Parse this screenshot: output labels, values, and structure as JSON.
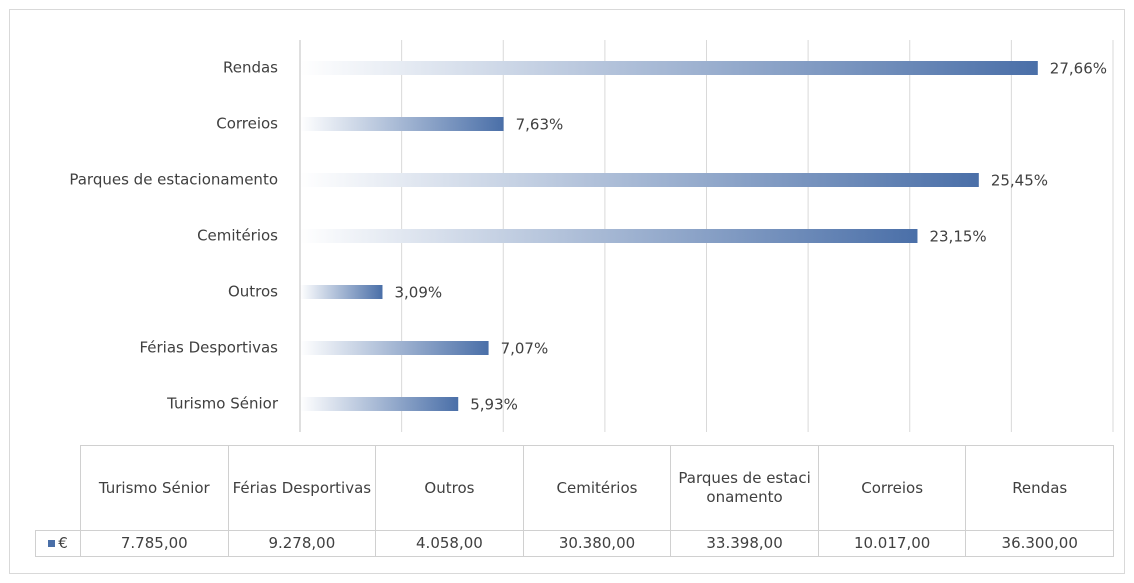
{
  "chart_data": {
    "type": "bar",
    "orientation": "horizontal",
    "categories": [
      "Turismo Sénior",
      "Férias Desportivas",
      "Outros",
      "Cemitérios",
      "Parques de estacionamento",
      "Correios",
      "Rendas"
    ],
    "series": [
      {
        "name": "€",
        "color": "#4a6fa8",
        "values": [
          7785,
          9278,
          4058,
          30380,
          33398,
          10017,
          36300
        ],
        "value_labels": [
          "7.785,00",
          "9.278,00",
          "4.058,00",
          "30.380,00",
          "33.398,00",
          "10.017,00",
          "36.300,00"
        ]
      }
    ],
    "bar_labels": [
      "5,93%",
      "7,07%",
      "3,09%",
      "23,15%",
      "25,45%",
      "7,63%",
      "27,66%"
    ],
    "xlim": [
      0,
      40000
    ],
    "xticks": [
      0,
      5000,
      10000,
      15000,
      20000,
      25000,
      30000,
      35000,
      40000
    ],
    "grid": true,
    "data_table": true
  }
}
